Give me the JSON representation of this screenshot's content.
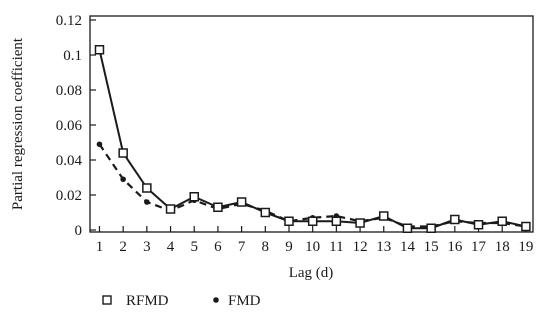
{
  "chart_data": {
    "type": "line",
    "xlabel": "Lag (d)",
    "ylabel": "Partial regression coefficient",
    "x": [
      1,
      2,
      3,
      4,
      5,
      6,
      7,
      8,
      9,
      10,
      11,
      12,
      13,
      14,
      15,
      16,
      17,
      18,
      19
    ],
    "x_tick_labels": [
      "1",
      "2",
      "3",
      "4",
      "5",
      "6",
      "7",
      "8",
      "9",
      "10",
      "11",
      "12",
      "13",
      "14",
      "15",
      "16",
      "17",
      "18",
      "19"
    ],
    "y_tick_labels": [
      "0",
      "0.02",
      "0.04",
      "0.06",
      "0.08",
      "0.1",
      "0.12"
    ],
    "y_ticks": [
      0,
      0.02,
      0.04,
      0.06,
      0.08,
      0.1,
      0.12
    ],
    "ylim": [
      0,
      0.12
    ],
    "xlim": [
      0.6,
      19.3
    ],
    "grid": false,
    "legend_position": "bottom-left",
    "series": [
      {
        "name": "RFMD",
        "line": "solid",
        "marker": "open-square",
        "values": [
          0.103,
          0.044,
          0.024,
          0.012,
          0.019,
          0.013,
          0.016,
          0.01,
          0.005,
          0.005,
          0.005,
          0.004,
          0.008,
          0.001,
          0.001,
          0.006,
          0.003,
          0.005,
          0.002
        ]
      },
      {
        "name": "FMD",
        "line": "dashed",
        "marker": "filled-circle",
        "values": [
          0.049,
          0.029,
          0.016,
          0.011,
          0.017,
          0.012,
          0.015,
          0.011,
          0.005,
          0.007,
          0.008,
          0.005,
          0.007,
          0.002,
          0.002,
          0.005,
          0.004,
          0.004,
          0.002
        ]
      }
    ],
    "colors": {
      "ink": "#1a1a1a",
      "background": "#ffffff"
    }
  }
}
